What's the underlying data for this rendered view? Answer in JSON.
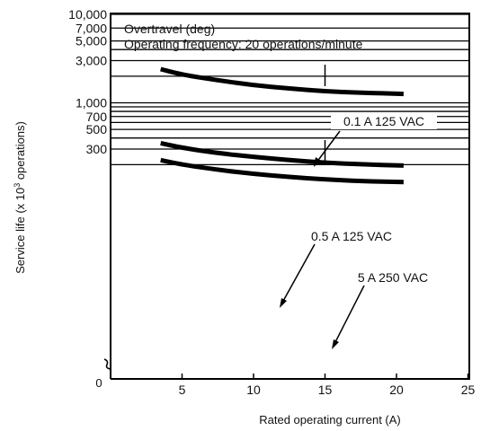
{
  "chart_data": {
    "type": "line",
    "yscale": "log",
    "annotation_lines": [
      "Overtravel (deg)",
      "Operating frequency: 20 operations/minute"
    ],
    "xlabel": "Rated operating current (A)",
    "ylabel_main": "Service life (x 10",
    "ylabel_sup": "3",
    "ylabel_tail": " operations)",
    "xlim": [
      0,
      25
    ],
    "ylim": [
      100,
      10000
    ],
    "x_ticks": [
      {
        "value": 5,
        "label": "5"
      },
      {
        "value": 10,
        "label": "10"
      },
      {
        "value": 15,
        "label": "15"
      },
      {
        "value": 20,
        "label": "20"
      },
      {
        "value": 25,
        "label": "25"
      }
    ],
    "x_origin_label": "0",
    "y_ticks": [
      {
        "value": 10000,
        "label": "10,000"
      },
      {
        "value": 7000,
        "label": "7,000"
      },
      {
        "value": 5000,
        "label": "5,000"
      },
      {
        "value": 3000,
        "label": "3,000"
      },
      {
        "value": 1000,
        "label": "1,000"
      },
      {
        "value": 700,
        "label": "700"
      },
      {
        "value": 500,
        "label": "500"
      },
      {
        "value": 300,
        "label": "300"
      }
    ],
    "gridlines_y": [
      10000,
      7000,
      5000,
      4000,
      3000,
      2000,
      1000,
      900,
      800,
      700,
      600,
      500,
      400,
      300,
      200
    ],
    "series": [
      {
        "name": "0.1 A 125 VAC",
        "x": [
          3.5,
          5,
          7.5,
          10,
          12.5,
          15,
          17.5,
          20.5
        ],
        "y": [
          2400,
          2080,
          1800,
          1580,
          1450,
          1350,
          1300,
          1260
        ]
      },
      {
        "name": "0.5 A 125 VAC",
        "x": [
          3.5,
          5,
          7.5,
          10,
          12.5,
          15,
          17.5,
          20.5
        ],
        "y": [
          350,
          310,
          270,
          245,
          225,
          210,
          202,
          195
        ]
      },
      {
        "name": "5 A 250 VAC",
        "x": [
          3.5,
          5,
          7.5,
          10,
          12.5,
          15,
          17.5,
          20.5
        ],
        "y": [
          225,
          200,
          175,
          157,
          145,
          136,
          130,
          127
        ]
      }
    ]
  }
}
